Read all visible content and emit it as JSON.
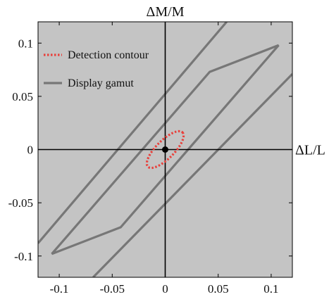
{
  "chart_data": {
    "type": "line",
    "x_axis_label": "ΔL/L",
    "y_axis_label": "ΔM/M",
    "xlim": [
      -0.12,
      0.12
    ],
    "ylim": [
      -0.12,
      0.12
    ],
    "x_ticks": [
      -0.1,
      -0.05,
      0,
      0.05,
      0.1
    ],
    "x_tick_labels": [
      "-0.1",
      "-0.05",
      "0",
      "0.05",
      "0.1"
    ],
    "y_ticks": [
      0.1,
      0.05,
      0,
      -0.05,
      -0.1
    ],
    "y_tick_labels": [
      "0.1",
      "0.05",
      "0",
      "-0.05",
      "-0.1"
    ],
    "grid": false,
    "background_color": "#c4c4c4",
    "legend_position": "top-left",
    "legend": [
      {
        "label": "Detection contour",
        "style": "dotted",
        "color": "#e8413c"
      },
      {
        "label": "Display gamut",
        "style": "solid",
        "color": "#777777"
      }
    ],
    "series": [
      {
        "name": "Display gamut",
        "color": "#777777",
        "closed": true,
        "x": [
          0.107,
          0.042,
          -0.107,
          -0.042
        ],
        "y": [
          0.098,
          0.073,
          -0.098,
          -0.073
        ]
      },
      {
        "name": "Detection contour",
        "color": "#e8413c",
        "style": "dotted",
        "ellipse": {
          "center": [
            0,
            0
          ],
          "semi_major": 0.023,
          "semi_minor": 0.0085,
          "angle_deg": 45
        }
      }
    ],
    "diagonal_lines": [
      {
        "x": [
          -0.12,
          0.058
        ],
        "y": [
          -0.088,
          0.12
        ]
      },
      {
        "x": [
          -0.068,
          0.12
        ],
        "y": [
          -0.12,
          0.071
        ]
      }
    ],
    "marker": {
      "x": 0,
      "y": 0,
      "color": "#000000"
    }
  }
}
